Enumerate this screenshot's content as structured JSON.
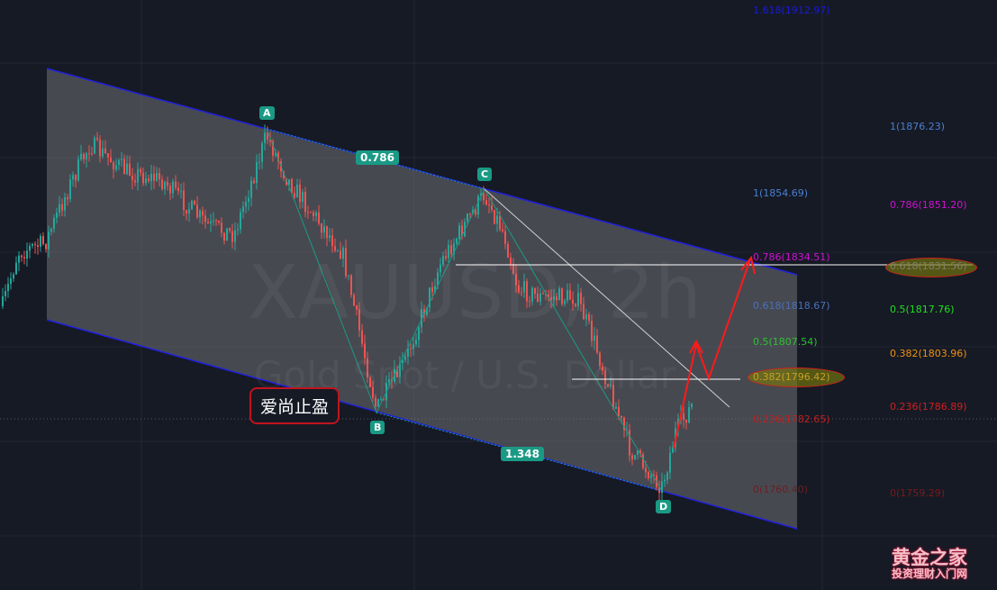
{
  "chart_data": {
    "type": "candlestick",
    "symbol_watermark": "XAUUSD, 2h",
    "description_watermark": "Gold Spot / U.S. Dollar",
    "pattern_points": [
      "A",
      "B",
      "C",
      "D"
    ],
    "pattern_ratios": {
      "ab_cd": "0.786",
      "bc_d": "1.348"
    },
    "fib_left": [
      {
        "label": "1.618(1912.97)",
        "color": "#1a1ad8"
      },
      {
        "label": "1(1854.69)",
        "color": "#4a7fd0"
      },
      {
        "label": "0.786(1834.51)",
        "color": "#d010d0"
      },
      {
        "label": "0.618(1818.67)",
        "color": "#4a70b8"
      },
      {
        "label": "0.5(1807.54)",
        "color": "#30c030"
      },
      {
        "label": "0.382(1796.42)",
        "color": "#c8a020"
      },
      {
        "label": "0.236(1782.65)",
        "color": "#c02020"
      },
      {
        "label": "0(1760.40)",
        "color": "#6a2020"
      }
    ],
    "fib_right": [
      {
        "label": "1(1876.23)",
        "color": "#4a7fd0"
      },
      {
        "label": "0.786(1851.20)",
        "color": "#d010d0"
      },
      {
        "label": "0.618(1831.56)",
        "color": "#808070"
      },
      {
        "label": "0.5(1817.76)",
        "color": "#20e020"
      },
      {
        "label": "0.382(1803.96)",
        "color": "#f09010"
      },
      {
        "label": "0.236(1786.89)",
        "color": "#d02020"
      },
      {
        "label": "0(1759.29)",
        "color": "#7a1a1a"
      }
    ],
    "colors": {
      "up": "#26a69a",
      "down": "#ef5350",
      "channel": "#2020e0",
      "arrow": "#ff1a1a"
    }
  },
  "annotation": "爱尚止盈",
  "logo": {
    "title": "黄金之家",
    "subtitle": "投资理财入门网"
  }
}
